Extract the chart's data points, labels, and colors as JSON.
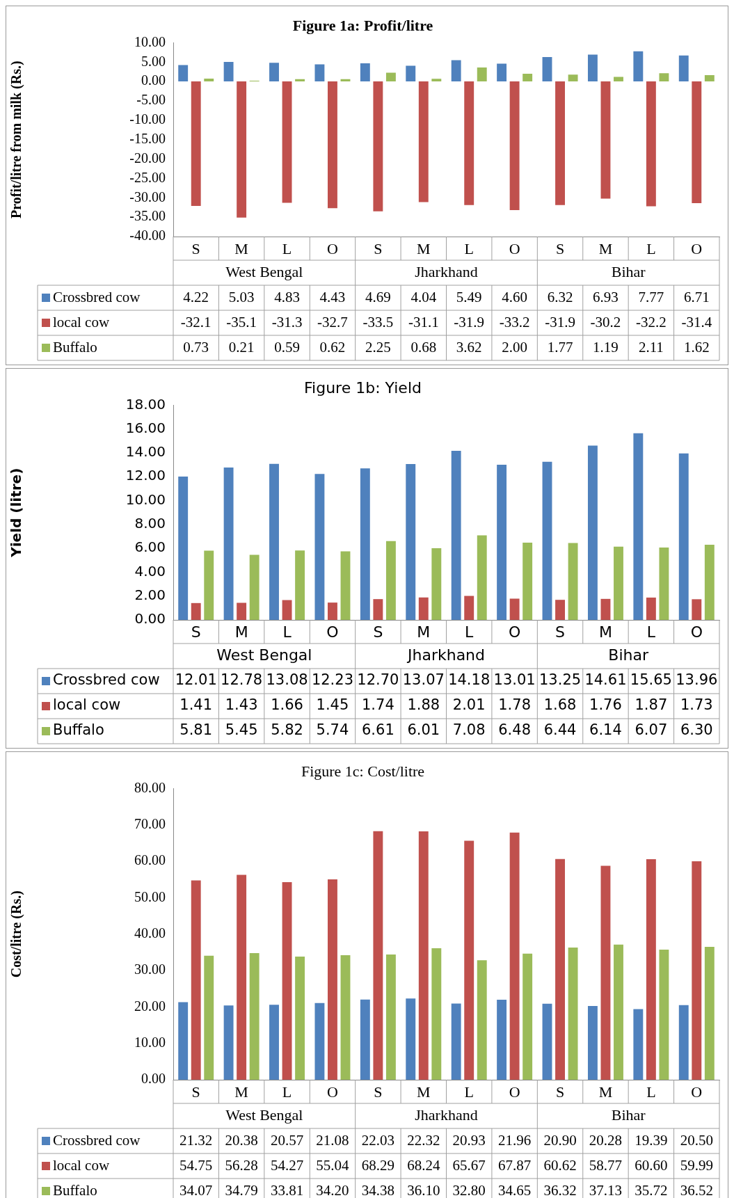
{
  "chart_data": [
    {
      "type": "bar",
      "title": "Figure 1a: Profit/litre",
      "ylabel": "Profit/litre from milk (Rs.)",
      "categories": [
        "S",
        "M",
        "L",
        "O",
        "S",
        "M",
        "L",
        "O",
        "S",
        "M",
        "L",
        "O"
      ],
      "annotations": [
        "West Bengal",
        "Jharkhand",
        "Bihar"
      ],
      "series": [
        {
          "name": "Crossbred cow",
          "color": "#4f81bd",
          "values": [
            4.22,
            5.03,
            4.83,
            4.43,
            4.69,
            4.04,
            5.49,
            4.6,
            6.32,
            6.93,
            7.77,
            6.71
          ],
          "value_labels": [
            "4.22",
            "5.03",
            "4.83",
            "4.43",
            "4.69",
            "4.04",
            "5.49",
            "4.60",
            "6.32",
            "6.93",
            "7.77",
            "6.71"
          ]
        },
        {
          "name": "local cow",
          "color": "#c0504d",
          "values": [
            -32.1,
            -35.1,
            -31.3,
            -32.7,
            -33.5,
            -31.1,
            -31.9,
            -33.2,
            -31.9,
            -30.2,
            -32.2,
            -31.4
          ],
          "value_labels": [
            "-32.1",
            "-35.1",
            "-31.3",
            "-32.7",
            "-33.5",
            "-31.1",
            "-31.9",
            "-33.2",
            "-31.9",
            "-30.2",
            "-32.2",
            "-31.4"
          ]
        },
        {
          "name": "Buffalo",
          "color": "#9bbb59",
          "values": [
            0.73,
            0.21,
            0.59,
            0.62,
            2.25,
            0.68,
            3.62,
            2.0,
            1.77,
            1.19,
            2.11,
            1.62
          ],
          "value_labels": [
            "0.73",
            "0.21",
            "0.59",
            "0.62",
            "2.25",
            "0.68",
            "3.62",
            "2.00",
            "1.77",
            "1.19",
            "2.11",
            "1.62"
          ]
        }
      ],
      "ylim": [
        -40,
        10
      ],
      "yticks": [
        {
          "value": 10,
          "label": "10.00"
        },
        {
          "value": 5,
          "label": "5.00"
        },
        {
          "value": 0,
          "label": "0.00"
        },
        {
          "value": -5,
          "label": "-5.00"
        },
        {
          "value": -10,
          "label": "-10.00"
        },
        {
          "value": -15,
          "label": "-15.00"
        },
        {
          "value": -20,
          "label": "-20.00"
        },
        {
          "value": -25,
          "label": "-25.00"
        },
        {
          "value": -30,
          "label": "-30.00"
        },
        {
          "value": -35,
          "label": "-35.00"
        },
        {
          "value": -40,
          "label": "-40.00"
        }
      ],
      "grid": false,
      "legend": "bottom"
    },
    {
      "type": "bar",
      "title": "Figure 1b: Yield",
      "ylabel": "Yield (litre)",
      "categories": [
        "S",
        "M",
        "L",
        "O",
        "S",
        "M",
        "L",
        "O",
        "S",
        "M",
        "L",
        "O"
      ],
      "annotations": [
        "West Bengal",
        "Jharkhand",
        "Bihar"
      ],
      "series": [
        {
          "name": "Crossbred cow",
          "color": "#4f81bd",
          "values": [
            12.01,
            12.78,
            13.08,
            12.23,
            12.7,
            13.07,
            14.18,
            13.01,
            13.25,
            14.61,
            15.65,
            13.96
          ],
          "value_labels": [
            "12.01",
            "12.78",
            "13.08",
            "12.23",
            "12.70",
            "13.07",
            "14.18",
            "13.01",
            "13.25",
            "14.61",
            "15.65",
            "13.96"
          ]
        },
        {
          "name": "local cow",
          "color": "#c0504d",
          "values": [
            1.41,
            1.43,
            1.66,
            1.45,
            1.74,
            1.88,
            2.01,
            1.78,
            1.68,
            1.76,
            1.87,
            1.73
          ],
          "value_labels": [
            "1.41",
            "1.43",
            "1.66",
            "1.45",
            "1.74",
            "1.88",
            "2.01",
            "1.78",
            "1.68",
            "1.76",
            "1.87",
            "1.73"
          ]
        },
        {
          "name": "Buffalo",
          "color": "#9bbb59",
          "values": [
            5.81,
            5.45,
            5.82,
            5.74,
            6.61,
            6.01,
            7.08,
            6.48,
            6.44,
            6.14,
            6.07,
            6.3
          ],
          "value_labels": [
            "5.81",
            "5.45",
            "5.82",
            "5.74",
            "6.61",
            "6.01",
            "7.08",
            "6.48",
            "6.44",
            "6.14",
            "6.07",
            "6.30"
          ]
        }
      ],
      "ylim": [
        0,
        18
      ],
      "yticks": [
        {
          "value": 0,
          "label": "0.00"
        },
        {
          "value": 2,
          "label": "2.00"
        },
        {
          "value": 4,
          "label": "4.00"
        },
        {
          "value": 6,
          "label": "6.00"
        },
        {
          "value": 8,
          "label": "8.00"
        },
        {
          "value": 10,
          "label": "10.00"
        },
        {
          "value": 12,
          "label": "12.00"
        },
        {
          "value": 14,
          "label": "14.00"
        },
        {
          "value": 16,
          "label": "16.00"
        },
        {
          "value": 18,
          "label": "18.00"
        }
      ],
      "grid": false,
      "legend": "bottom"
    },
    {
      "type": "bar",
      "title": "Figure 1c: Cost/litre",
      "ylabel": "Cost/litre (Rs.)",
      "categories": [
        "S",
        "M",
        "L",
        "O",
        "S",
        "M",
        "L",
        "O",
        "S",
        "M",
        "L",
        "O"
      ],
      "annotations": [
        "West Bengal",
        "Jharkhand",
        "Bihar"
      ],
      "series": [
        {
          "name": "Crossbred cow",
          "color": "#4f81bd",
          "values": [
            21.32,
            20.38,
            20.57,
            21.08,
            22.03,
            22.32,
            20.93,
            21.96,
            20.9,
            20.28,
            19.39,
            20.5
          ],
          "value_labels": [
            "21.32",
            "20.38",
            "20.57",
            "21.08",
            "22.03",
            "22.32",
            "20.93",
            "21.96",
            "20.90",
            "20.28",
            "19.39",
            "20.50"
          ]
        },
        {
          "name": "local cow",
          "color": "#c0504d",
          "values": [
            54.75,
            56.28,
            54.27,
            55.04,
            68.29,
            68.24,
            65.67,
            67.87,
            60.62,
            58.77,
            60.6,
            59.99
          ],
          "value_labels": [
            "54.75",
            "56.28",
            "54.27",
            "55.04",
            "68.29",
            "68.24",
            "65.67",
            "67.87",
            "60.62",
            "58.77",
            "60.60",
            "59.99"
          ]
        },
        {
          "name": "Buffalo",
          "color": "#9bbb59",
          "values": [
            34.07,
            34.79,
            33.81,
            34.2,
            34.38,
            36.1,
            32.8,
            34.65,
            36.32,
            37.13,
            35.72,
            36.52
          ],
          "value_labels": [
            "34.07",
            "34.79",
            "33.81",
            "34.20",
            "34.38",
            "36.10",
            "32.80",
            "34.65",
            "36.32",
            "37.13",
            "35.72",
            "36.52"
          ]
        }
      ],
      "ylim": [
        0,
        80
      ],
      "yticks": [
        {
          "value": 0,
          "label": "0.00"
        },
        {
          "value": 10,
          "label": "10.00"
        },
        {
          "value": 20,
          "label": "20.00"
        },
        {
          "value": 30,
          "label": "30.00"
        },
        {
          "value": 40,
          "label": "40.00"
        },
        {
          "value": 50,
          "label": "50.00"
        },
        {
          "value": 60,
          "label": "60.00"
        },
        {
          "value": 70,
          "label": "70.00"
        },
        {
          "value": 80,
          "label": "80.00"
        }
      ],
      "grid": false,
      "legend": "bottom"
    }
  ]
}
